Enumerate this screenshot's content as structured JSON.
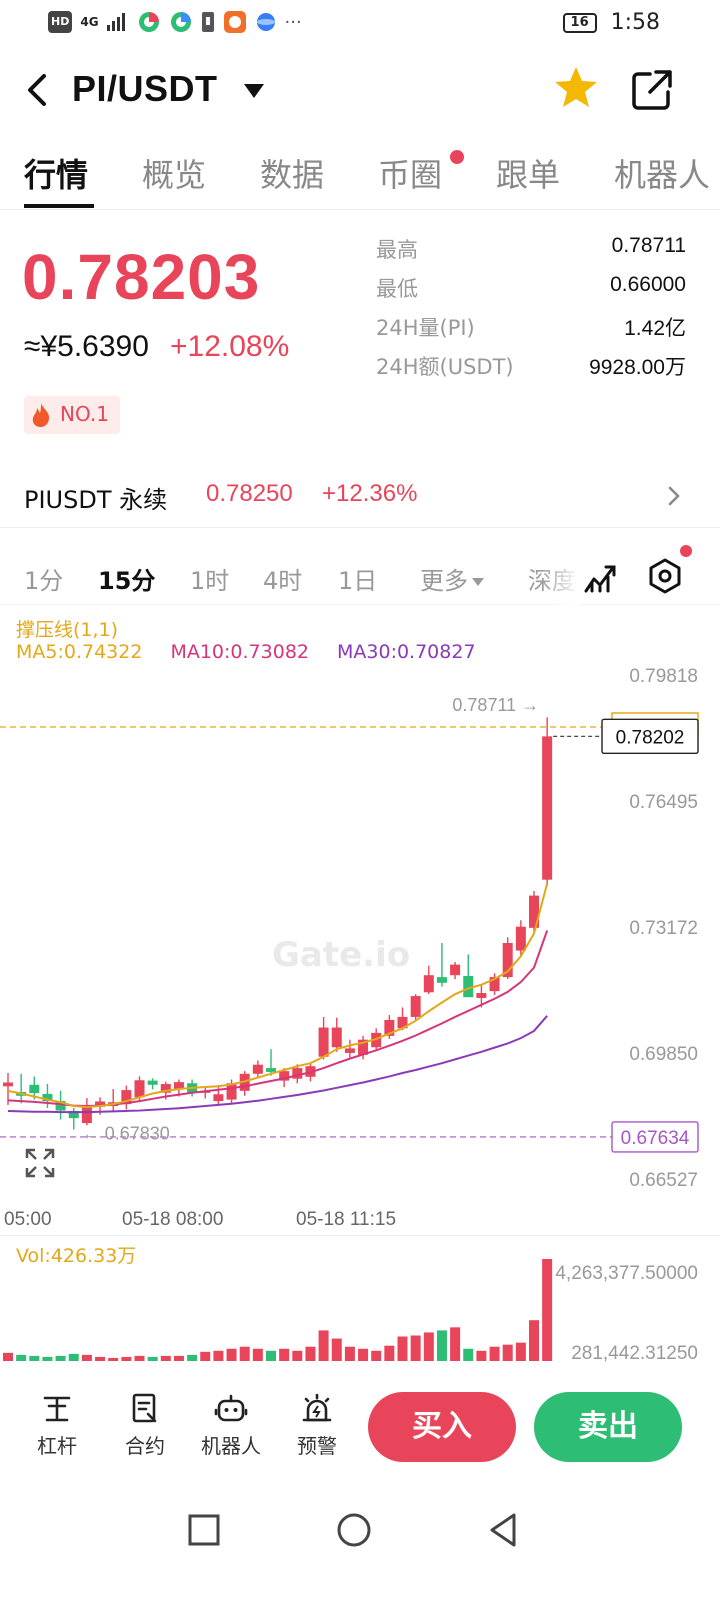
{
  "status_bar": {
    "network": "HD",
    "signal": "4G",
    "battery": "16",
    "time": "1:58",
    "overflow": "···"
  },
  "header": {
    "pair": "PI/USDT",
    "icons": [
      "back-arrow-icon",
      "caret-down-icon",
      "star-icon",
      "share-icon"
    ],
    "star_color": "#f5b800"
  },
  "tabs": [
    "行情",
    "概览",
    "数据",
    "币圈",
    "跟单",
    "机器人"
  ],
  "ticker": {
    "last_price": "0.78203",
    "cny_price": "≈¥5.6390",
    "change_pct": "+12.08%",
    "rank": "NO.1",
    "stats": [
      {
        "label": "最高",
        "value": "0.78711"
      },
      {
        "label": "最低",
        "value": "0.66000"
      },
      {
        "label": "24H量(PI)",
        "value": "1.42亿"
      },
      {
        "label": "24H额(USDT)",
        "value": "9928.00万"
      }
    ]
  },
  "perpetual": {
    "name": "PIUSDT 永续",
    "price": "0.78250",
    "change_pct": "+12.36%"
  },
  "timeframes": {
    "items": [
      "1分",
      "15分",
      "1时",
      "4时",
      "1日"
    ],
    "more": "更多",
    "depth": "深度",
    "active": "15分"
  },
  "indicators": {
    "support_resistance": "撑压线(1,1)",
    "ma5": "MA5:0.74322",
    "ma10": "MA10:0.73082",
    "ma30": "MA30:0.70827",
    "volume": "Vol:426.33万"
  },
  "chart_data": {
    "type": "candlestick",
    "watermark": "Gate.io",
    "y_ticks": [
      "0.79818",
      "0.76495",
      "0.73172",
      "0.69850",
      "0.66527"
    ],
    "x_ticks": [
      "05:00",
      "05-18 08:00",
      "05-18 11:15"
    ],
    "ylim": [
      0.6605,
      0.8003
    ],
    "current_price_label": "0.78202",
    "support_label": "0.67634",
    "high_marker": "0.78711 →",
    "low_marker": "← 0.67830",
    "volume_ticks": [
      "4,263,377.50000",
      "281,442.31250"
    ],
    "candles": [
      {
        "o": 0.6897,
        "h": 0.6932,
        "l": 0.6848,
        "c": 0.6907
      },
      {
        "o": 0.6882,
        "h": 0.693,
        "l": 0.6852,
        "c": 0.6872
      },
      {
        "o": 0.6901,
        "h": 0.6923,
        "l": 0.6862,
        "c": 0.6879
      },
      {
        "o": 0.6877,
        "h": 0.6903,
        "l": 0.684,
        "c": 0.6858
      },
      {
        "o": 0.6858,
        "h": 0.6885,
        "l": 0.6809,
        "c": 0.6833
      },
      {
        "o": 0.6832,
        "h": 0.684,
        "l": 0.6783,
        "c": 0.6813
      },
      {
        "o": 0.68,
        "h": 0.6866,
        "l": 0.6794,
        "c": 0.6847
      },
      {
        "o": 0.6843,
        "h": 0.6868,
        "l": 0.6822,
        "c": 0.6857
      },
      {
        "o": 0.6845,
        "h": 0.689,
        "l": 0.6832,
        "c": 0.6855
      },
      {
        "o": 0.685,
        "h": 0.6899,
        "l": 0.6836,
        "c": 0.6887
      },
      {
        "o": 0.6868,
        "h": 0.6923,
        "l": 0.6858,
        "c": 0.6913
      },
      {
        "o": 0.6912,
        "h": 0.6918,
        "l": 0.6889,
        "c": 0.6901
      },
      {
        "o": 0.688,
        "h": 0.6909,
        "l": 0.6862,
        "c": 0.6903
      },
      {
        "o": 0.689,
        "h": 0.6915,
        "l": 0.687,
        "c": 0.6908
      },
      {
        "o": 0.6905,
        "h": 0.6915,
        "l": 0.687,
        "c": 0.6881
      },
      {
        "o": 0.6883,
        "h": 0.6898,
        "l": 0.6865,
        "c": 0.6885
      },
      {
        "o": 0.6858,
        "h": 0.69,
        "l": 0.685,
        "c": 0.6876
      },
      {
        "o": 0.6862,
        "h": 0.6915,
        "l": 0.685,
        "c": 0.6905
      },
      {
        "o": 0.6885,
        "h": 0.6937,
        "l": 0.6872,
        "c": 0.693
      },
      {
        "o": 0.693,
        "h": 0.6965,
        "l": 0.6918,
        "c": 0.6954
      },
      {
        "o": 0.6945,
        "h": 0.6995,
        "l": 0.6925,
        "c": 0.6935
      },
      {
        "o": 0.6912,
        "h": 0.6945,
        "l": 0.6895,
        "c": 0.6937
      },
      {
        "o": 0.6917,
        "h": 0.6955,
        "l": 0.6905,
        "c": 0.6945
      },
      {
        "o": 0.6922,
        "h": 0.6958,
        "l": 0.691,
        "c": 0.695
      },
      {
        "o": 0.6975,
        "h": 0.708,
        "l": 0.6968,
        "c": 0.7052
      },
      {
        "o": 0.7,
        "h": 0.7078,
        "l": 0.6988,
        "c": 0.7052
      },
      {
        "o": 0.6985,
        "h": 0.702,
        "l": 0.6972,
        "c": 0.6997
      },
      {
        "o": 0.698,
        "h": 0.703,
        "l": 0.6968,
        "c": 0.702
      },
      {
        "o": 0.7,
        "h": 0.705,
        "l": 0.6992,
        "c": 0.7038
      },
      {
        "o": 0.703,
        "h": 0.7085,
        "l": 0.7022,
        "c": 0.7072
      },
      {
        "o": 0.705,
        "h": 0.7105,
        "l": 0.7045,
        "c": 0.708
      },
      {
        "o": 0.708,
        "h": 0.714,
        "l": 0.7072,
        "c": 0.7135
      },
      {
        "o": 0.7145,
        "h": 0.7215,
        "l": 0.714,
        "c": 0.719
      },
      {
        "o": 0.7185,
        "h": 0.7275,
        "l": 0.716,
        "c": 0.717
      },
      {
        "o": 0.719,
        "h": 0.7225,
        "l": 0.718,
        "c": 0.7218
      },
      {
        "o": 0.7188,
        "h": 0.7245,
        "l": 0.714,
        "c": 0.7132
      },
      {
        "o": 0.713,
        "h": 0.7163,
        "l": 0.7105,
        "c": 0.7143
      },
      {
        "o": 0.7148,
        "h": 0.7195,
        "l": 0.7138,
        "c": 0.7185
      },
      {
        "o": 0.7185,
        "h": 0.729,
        "l": 0.718,
        "c": 0.7275
      },
      {
        "o": 0.7255,
        "h": 0.7335,
        "l": 0.724,
        "c": 0.7318
      },
      {
        "o": 0.7315,
        "h": 0.7412,
        "l": 0.7303,
        "c": 0.74
      },
      {
        "o": 0.7442,
        "h": 0.787,
        "l": 0.7425,
        "c": 0.782
      }
    ],
    "ma5": [
      0.6885,
      0.6878,
      0.687,
      0.6862,
      0.6855,
      0.6845,
      0.6842,
      0.6845,
      0.685,
      0.6858,
      0.6868,
      0.6878,
      0.6885,
      0.689,
      0.6893,
      0.6895,
      0.6897,
      0.6902,
      0.691,
      0.692,
      0.693,
      0.694,
      0.695,
      0.6958,
      0.6975,
      0.6995,
      0.7005,
      0.7012,
      0.7022,
      0.7036,
      0.705,
      0.707,
      0.7095,
      0.7118,
      0.714,
      0.7155,
      0.7165,
      0.718,
      0.72,
      0.724,
      0.73,
      0.7432
    ],
    "ma10": [
      0.686,
      0.6858,
      0.6856,
      0.6853,
      0.685,
      0.6846,
      0.6845,
      0.6846,
      0.6849,
      0.6853,
      0.6858,
      0.6864,
      0.687,
      0.6875,
      0.688,
      0.6884,
      0.6888,
      0.6892,
      0.6897,
      0.6904,
      0.6911,
      0.6918,
      0.6926,
      0.6934,
      0.6945,
      0.6958,
      0.697,
      0.6981,
      0.6992,
      0.7004,
      0.7017,
      0.7031,
      0.7047,
      0.7063,
      0.708,
      0.7096,
      0.7112,
      0.7128,
      0.7146,
      0.7172,
      0.721,
      0.7308
    ],
    "ma30": [
      0.6832,
      0.6831,
      0.683,
      0.683,
      0.6829,
      0.6829,
      0.6829,
      0.683,
      0.6831,
      0.6832,
      0.6833,
      0.6835,
      0.6837,
      0.6839,
      0.6842,
      0.6845,
      0.6848,
      0.6851,
      0.6855,
      0.6859,
      0.6864,
      0.6869,
      0.6874,
      0.688,
      0.6886,
      0.6893,
      0.69,
      0.6907,
      0.6915,
      0.6923,
      0.6932,
      0.694,
      0.6949,
      0.6958,
      0.6968,
      0.6978,
      0.6988,
      0.6999,
      0.701,
      0.7024,
      0.7043,
      0.7083
    ],
    "volumes": [
      0.08,
      0.06,
      0.05,
      0.04,
      0.05,
      0.07,
      0.06,
      0.04,
      0.03,
      0.04,
      0.05,
      0.04,
      0.05,
      0.05,
      0.06,
      0.09,
      0.1,
      0.12,
      0.14,
      0.12,
      0.1,
      0.12,
      0.1,
      0.14,
      0.3,
      0.22,
      0.14,
      0.12,
      0.1,
      0.15,
      0.24,
      0.25,
      0.28,
      0.3,
      0.33,
      0.12,
      0.1,
      0.14,
      0.16,
      0.18,
      0.4,
      1.0
    ],
    "colors": {
      "up": "#e8455a",
      "down": "#2ebd74",
      "ma5": "#e3a819",
      "ma10": "#d5357a",
      "ma30": "#8a3ab9",
      "support": "#a855c7",
      "resistance": "#e3a819"
    }
  },
  "actions": {
    "leverage": "杠杆",
    "contract": "合约",
    "bot": "机器人",
    "alert": "预警",
    "buy": "买入",
    "sell": "卖出"
  }
}
